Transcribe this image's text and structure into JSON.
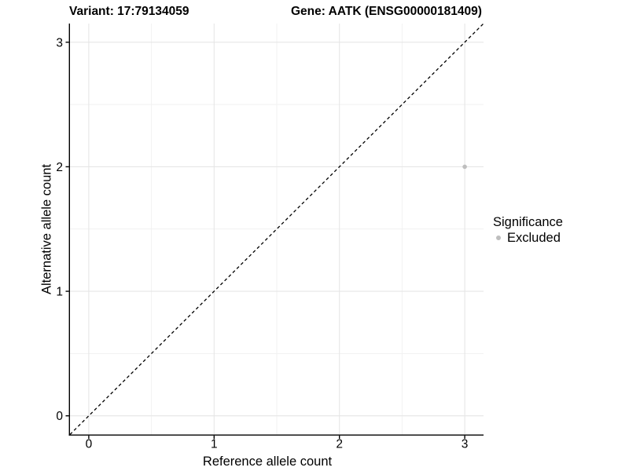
{
  "chart_data": {
    "type": "scatter",
    "titles": {
      "left": "Variant: 17:79134059",
      "right": "Gene: AATK (ENSG00000181409)"
    },
    "xlabel": "Reference allele count",
    "ylabel": "Alternative allele count",
    "xlim": [
      -0.15,
      3.15
    ],
    "ylim": [
      -0.15,
      3.15
    ],
    "x_ticks": [
      0,
      1,
      2,
      3
    ],
    "y_ticks": [
      0,
      1,
      2,
      3
    ],
    "x_minor_ticks": [
      0.5,
      1.5,
      2.5
    ],
    "y_minor_ticks": [
      0.5,
      1.5,
      2.5
    ],
    "grid": "major+minor",
    "reference_line": {
      "equation": "y = x",
      "style": "dashed",
      "color": "#000000"
    },
    "series": [
      {
        "name": "Excluded",
        "color": "#bebebe",
        "points": [
          {
            "x": 3,
            "y": 2
          }
        ]
      }
    ],
    "legend": {
      "title": "Significance",
      "position": "right",
      "entries": [
        {
          "label": "Excluded",
          "color": "#bebebe"
        }
      ]
    }
  },
  "colors": {
    "background": "#ffffff",
    "grid_major": "#e6e6e6",
    "grid_minor": "#f1f1f1",
    "axis": "#000000",
    "text": "#000000"
  }
}
